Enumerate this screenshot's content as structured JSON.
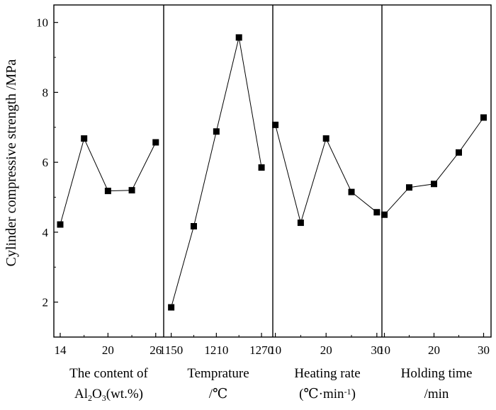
{
  "chart_data": {
    "type": "line",
    "ylabel": "Cylinder compressive strength /MPa",
    "ylim": [
      1.0,
      10.5
    ],
    "y_ticks": [
      2,
      4,
      6,
      8,
      10
    ],
    "grid": false,
    "marker": "square",
    "color": "#000000",
    "panels": [
      {
        "name": "alumina",
        "xlabel_line1": "The content of",
        "xlabel_line2": "Al2O3(wt.%)",
        "xlabel_line2_parts": [
          "Al",
          "2",
          "O",
          "3",
          "(wt.%)"
        ],
        "xlim": [
          13.2,
          27.0
        ],
        "x_ticks": [
          14,
          20,
          26
        ],
        "x": [
          14,
          17,
          20,
          23,
          26
        ],
        "values": [
          4.22,
          6.68,
          5.18,
          5.2,
          6.57
        ]
      },
      {
        "name": "temperature",
        "xlabel_line1": "Temprature",
        "xlabel_line2": "/℃",
        "xlim": [
          1140,
          1285
        ],
        "x_ticks": [
          1150,
          1210,
          1270
        ],
        "x": [
          1150,
          1180,
          1210,
          1240,
          1270
        ],
        "values": [
          1.85,
          4.17,
          6.88,
          9.57,
          5.85
        ]
      },
      {
        "name": "heating-rate",
        "xlabel_line1": "Heating rate",
        "xlabel_line2": "(℃·min-1)",
        "xlabel_line2_parts": [
          "(℃·min",
          "-1",
          ")"
        ],
        "xlim": [
          9.5,
          31.0
        ],
        "x_ticks": [
          10,
          20,
          30
        ],
        "x": [
          10,
          15,
          20,
          25,
          30
        ],
        "values": [
          7.07,
          4.27,
          6.68,
          5.15,
          4.57
        ]
      },
      {
        "name": "holding-time",
        "xlabel_line1": "Holding time",
        "xlabel_line2": "/min",
        "xlim": [
          9.5,
          31.5
        ],
        "x_ticks": [
          10,
          20,
          30
        ],
        "x": [
          10,
          15,
          20,
          25,
          30
        ],
        "values": [
          4.5,
          5.28,
          5.38,
          6.28,
          7.28
        ]
      }
    ]
  }
}
